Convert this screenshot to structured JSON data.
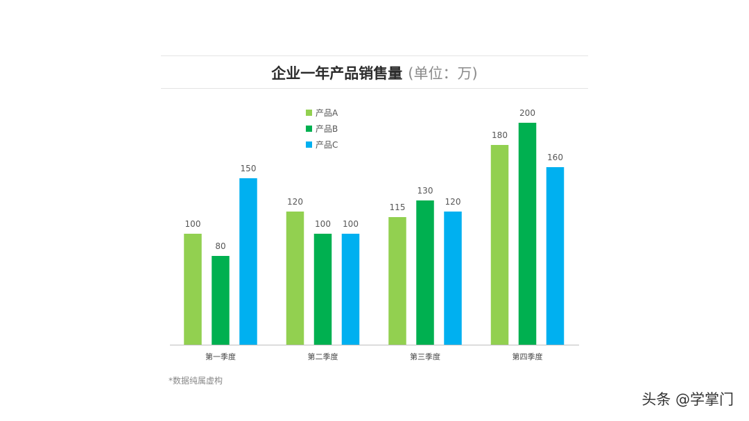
{
  "chart_data": {
    "type": "bar",
    "title": "企业一年产品销售量",
    "unit_label": "(单位：万)",
    "categories": [
      "第一季度",
      "第二季度",
      "第三季度",
      "第四季度"
    ],
    "series": [
      {
        "name": "产品A",
        "color": "#92d050",
        "values": [
          100,
          120,
          115,
          180
        ]
      },
      {
        "name": "产品B",
        "color": "#00b050",
        "values": [
          80,
          100,
          130,
          200
        ]
      },
      {
        "name": "产品C",
        "color": "#00b0f0",
        "values": [
          150,
          100,
          120,
          160
        ]
      }
    ],
    "ylim": [
      0,
      200
    ],
    "grid": false,
    "legend_position": "top-left",
    "data_labels": true
  },
  "footnote": "*数据纯属虚构",
  "watermark": "头条 @学掌门"
}
